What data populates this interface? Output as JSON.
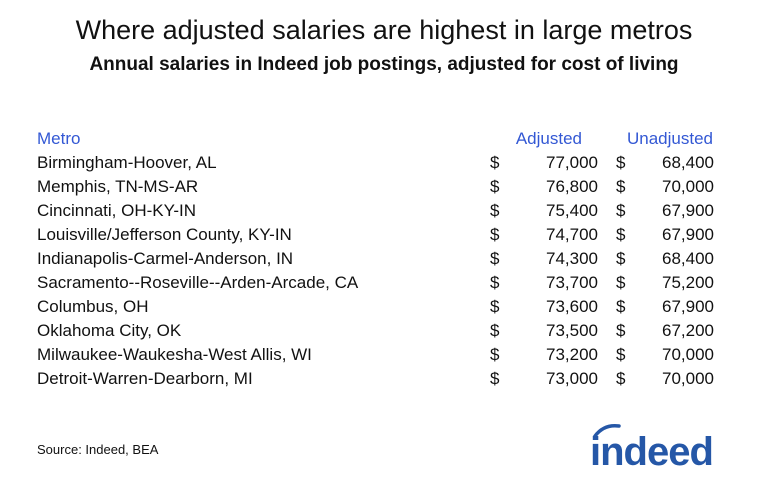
{
  "header": {
    "title": "Where adjusted salaries are highest in large metros",
    "subtitle": "Annual salaries in Indeed job postings, adjusted for cost of living"
  },
  "table": {
    "columns": [
      "Metro",
      "Adjusted",
      "Unadjusted"
    ],
    "rows": [
      [
        "Birmingham-Hoover, AL",
        "$",
        "77,000",
        "$",
        "68,400"
      ],
      [
        "Memphis, TN-MS-AR",
        "$",
        "76,800",
        "$",
        "70,000"
      ],
      [
        "Cincinnati, OH-KY-IN",
        "$",
        "75,400",
        "$",
        "67,900"
      ],
      [
        "Louisville/Jefferson County, KY-IN",
        "$",
        "74,700",
        "$",
        "67,900"
      ],
      [
        "Indianapolis-Carmel-Anderson, IN",
        "$",
        "74,300",
        "$",
        "68,400"
      ],
      [
        "Sacramento--Roseville--Arden-Arcade, CA",
        "$",
        "73,700",
        "$",
        "75,200"
      ],
      [
        "Columbus, OH",
        "$",
        "73,600",
        "$",
        "67,900"
      ],
      [
        "Oklahoma City, OK",
        "$",
        "73,500",
        "$",
        "67,200"
      ],
      [
        "Milwaukee-Waukesha-West Allis, WI",
        "$",
        "73,200",
        "$",
        "70,000"
      ],
      [
        "Detroit-Warren-Dearborn, MI",
        "$",
        "73,000",
        "$",
        "70,000"
      ]
    ]
  },
  "footer": {
    "source": "Source: Indeed, BEA",
    "logo": "indeed"
  }
}
